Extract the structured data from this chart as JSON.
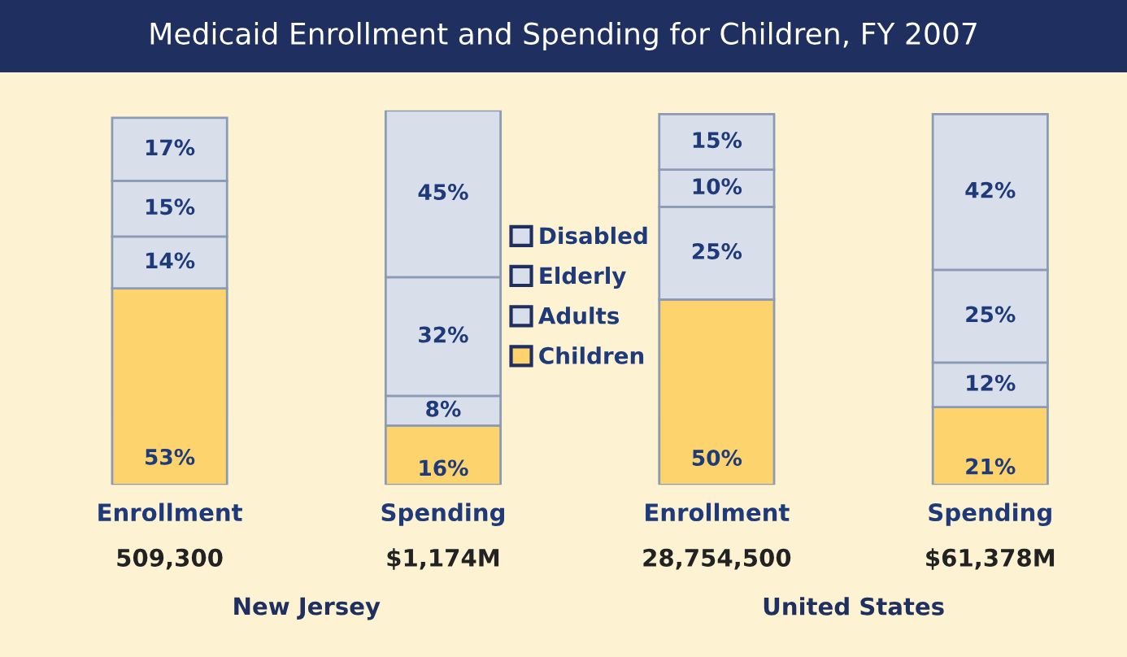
{
  "chart_data": {
    "type": "bar",
    "title": "Medicaid Enrollment and Spending for Children, FY 2007",
    "categories": [
      "Enrollment",
      "Spending",
      "Enrollment",
      "Spending"
    ],
    "stacked": true,
    "tick_labels": "x",
    "legend": "center",
    "grid": false,
    "series": [
      {
        "name": "Children",
        "color": "#fcd36c",
        "values": [
          53,
          16,
          50,
          21
        ],
        "value_labels": [
          "53%",
          "16%",
          "50%",
          "21%"
        ]
      },
      {
        "name": "Adults",
        "color": "#d9dfea",
        "values": [
          14,
          8,
          25,
          12
        ],
        "value_labels": [
          "14%",
          "8%",
          "25%",
          "12%"
        ]
      },
      {
        "name": "Elderly",
        "color": "#d9dfea",
        "values": [
          15,
          32,
          10,
          25
        ],
        "value_labels": [
          "15%",
          "32%",
          "10%",
          "25%"
        ]
      },
      {
        "name": "Disabled",
        "color": "#d9dfea",
        "values": [
          17,
          45,
          15,
          42
        ],
        "value_labels": [
          "17%",
          "45%",
          "15%",
          "42%"
        ]
      }
    ],
    "annotations": [
      "509,300",
      "$1,174M",
      "28,754,500",
      "$61,378M",
      "New Jersey",
      "United States"
    ]
  }
}
